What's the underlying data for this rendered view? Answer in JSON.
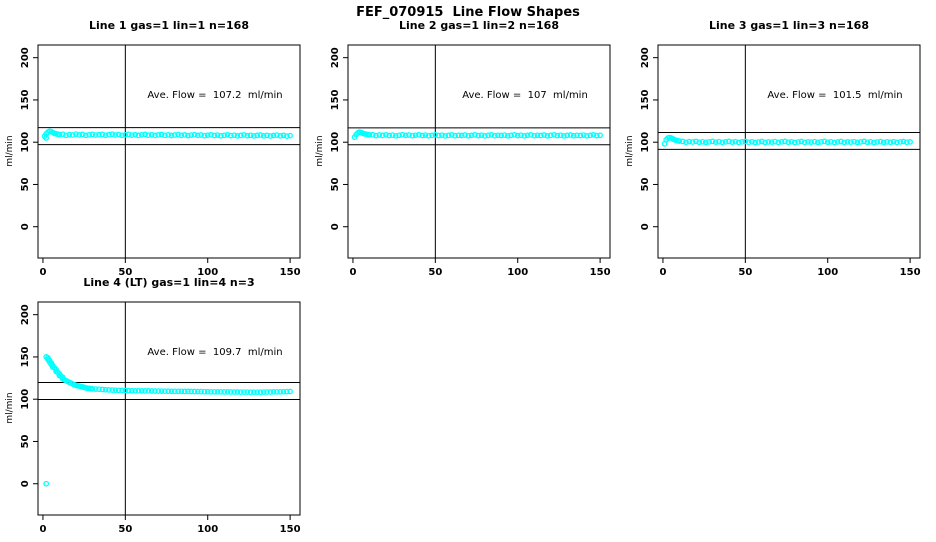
{
  "page_title": "FEF_070915  Line Flow Shapes",
  "colors": {
    "point": "#00ffff",
    "axis": "#000000",
    "background": "#ffffff"
  },
  "chart_data": [
    {
      "type": "scatter",
      "title": "Line 1 gas=1 lin=1 n=168",
      "annotation": "Ave. Flow =  107.2  ml/min",
      "ave_flow": 107.2,
      "ylabel": "ml/min",
      "xlabel": "",
      "x_range": [
        -3,
        156
      ],
      "y_range": [
        -37,
        215
      ],
      "x_ticks": [
        0,
        50,
        100,
        150
      ],
      "y_ticks": [
        0,
        50,
        100,
        150,
        200
      ],
      "vline_x": 50,
      "hlines": [
        117.2,
        97.2
      ],
      "point_color": "#00ffff",
      "points": [
        [
          1,
          107
        ],
        [
          2,
          110
        ],
        [
          2,
          105
        ],
        [
          3,
          112
        ],
        [
          4,
          113
        ],
        [
          5,
          112.5
        ],
        [
          6,
          111.5
        ],
        [
          7,
          110.5
        ],
        [
          8,
          110
        ],
        [
          9,
          109.5
        ],
        [
          10,
          109
        ],
        [
          12,
          109.5
        ],
        [
          14,
          108.2
        ],
        [
          16,
          109.0
        ],
        [
          18,
          108.5
        ],
        [
          20,
          109.6
        ],
        [
          22,
          108.6
        ],
        [
          24,
          109.2
        ],
        [
          26,
          108.1
        ],
        [
          28,
          108.8
        ],
        [
          30,
          109.3
        ],
        [
          32,
          108.4
        ],
        [
          34,
          108.9
        ],
        [
          36,
          109.4
        ],
        [
          38,
          108.3
        ],
        [
          40,
          108.9
        ],
        [
          42,
          109.5
        ],
        [
          44,
          108.5
        ],
        [
          46,
          109.0
        ],
        [
          48,
          108.2
        ],
        [
          50,
          108.8
        ],
        [
          52,
          109.3
        ],
        [
          54,
          108.4
        ],
        [
          56,
          108.9
        ],
        [
          58,
          108.1
        ],
        [
          60,
          108.7
        ],
        [
          62,
          109.2
        ],
        [
          64,
          108.3
        ],
        [
          66,
          108.8
        ],
        [
          68,
          108.0
        ],
        [
          70,
          108.6
        ],
        [
          72,
          109.1
        ],
        [
          74,
          108.2
        ],
        [
          76,
          108.7
        ],
        [
          78,
          107.9
        ],
        [
          80,
          108.5
        ],
        [
          82,
          109.0
        ],
        [
          84,
          108.1
        ],
        [
          86,
          108.6
        ],
        [
          88,
          107.8
        ],
        [
          90,
          108.4
        ],
        [
          92,
          108.9
        ],
        [
          94,
          108.0
        ],
        [
          96,
          108.5
        ],
        [
          98,
          107.7
        ],
        [
          100,
          108.3
        ],
        [
          102,
          108.8
        ],
        [
          104,
          107.9
        ],
        [
          106,
          108.4
        ],
        [
          108,
          107.6
        ],
        [
          110,
          108.2
        ],
        [
          112,
          108.7
        ],
        [
          114,
          107.8
        ],
        [
          116,
          108.3
        ],
        [
          118,
          107.5
        ],
        [
          120,
          108.1
        ],
        [
          122,
          108.6
        ],
        [
          124,
          107.7
        ],
        [
          126,
          108.2
        ],
        [
          128,
          107.4
        ],
        [
          130,
          108.0
        ],
        [
          132,
          108.5
        ],
        [
          134,
          107.6
        ],
        [
          136,
          108.1
        ],
        [
          138,
          107.3
        ],
        [
          140,
          107.9
        ],
        [
          142,
          108.4
        ],
        [
          144,
          107.5
        ],
        [
          146,
          108.0
        ],
        [
          148,
          107.2
        ],
        [
          150,
          107.8
        ]
      ]
    },
    {
      "type": "scatter",
      "title": "Line 2 gas=1 lin=2 n=168",
      "annotation": "Ave. Flow =  107  ml/min",
      "ave_flow": 107,
      "ylabel": "ml/min",
      "xlabel": "",
      "x_range": [
        -3,
        156
      ],
      "y_range": [
        -37,
        215
      ],
      "x_ticks": [
        0,
        50,
        100,
        150
      ],
      "y_ticks": [
        0,
        50,
        100,
        150,
        200
      ],
      "vline_x": 50,
      "hlines": [
        117,
        97
      ],
      "point_color": "#00ffff",
      "points": [
        [
          1,
          106
        ],
        [
          2,
          109
        ],
        [
          3,
          111
        ],
        [
          4,
          112
        ],
        [
          5,
          111.5
        ],
        [
          6,
          110.5
        ],
        [
          7,
          110
        ],
        [
          8,
          109.5
        ],
        [
          9,
          109
        ],
        [
          10,
          108.8
        ],
        [
          12,
          108.9
        ],
        [
          14,
          107.8
        ],
        [
          16,
          108.5
        ],
        [
          18,
          108.0
        ],
        [
          20,
          108.8
        ],
        [
          22,
          107.9
        ],
        [
          24,
          108.4
        ],
        [
          26,
          107.6
        ],
        [
          28,
          108.2
        ],
        [
          30,
          108.9
        ],
        [
          32,
          108.0
        ],
        [
          34,
          108.5
        ],
        [
          36,
          107.7
        ],
        [
          38,
          108.3
        ],
        [
          40,
          108.8
        ],
        [
          42,
          107.9
        ],
        [
          44,
          108.4
        ],
        [
          46,
          107.6
        ],
        [
          48,
          108.1
        ],
        [
          50,
          108.7
        ],
        [
          52,
          107.8
        ],
        [
          54,
          108.3
        ],
        [
          56,
          107.5
        ],
        [
          58,
          108.0
        ],
        [
          60,
          108.6
        ],
        [
          62,
          107.7
        ],
        [
          64,
          108.2
        ],
        [
          66,
          107.9
        ],
        [
          68,
          108.5
        ],
        [
          70,
          107.6
        ],
        [
          72,
          108.1
        ],
        [
          74,
          108.7
        ],
        [
          76,
          107.8
        ],
        [
          78,
          108.3
        ],
        [
          80,
          107.5
        ],
        [
          82,
          108.0
        ],
        [
          84,
          108.6
        ],
        [
          86,
          107.7
        ],
        [
          88,
          108.2
        ],
        [
          90,
          107.9
        ],
        [
          92,
          108.4
        ],
        [
          94,
          107.6
        ],
        [
          96,
          108.1
        ],
        [
          98,
          108.7
        ],
        [
          100,
          107.8
        ],
        [
          102,
          108.3
        ],
        [
          104,
          107.5
        ],
        [
          106,
          108.0
        ],
        [
          108,
          108.6
        ],
        [
          110,
          107.7
        ],
        [
          112,
          108.2
        ],
        [
          114,
          107.9
        ],
        [
          116,
          108.5
        ],
        [
          118,
          107.6
        ],
        [
          120,
          108.1
        ],
        [
          122,
          108.7
        ],
        [
          124,
          107.8
        ],
        [
          126,
          108.3
        ],
        [
          128,
          107.5
        ],
        [
          130,
          108.0
        ],
        [
          132,
          108.5
        ],
        [
          134,
          107.7
        ],
        [
          136,
          108.2
        ],
        [
          138,
          107.9
        ],
        [
          140,
          108.4
        ],
        [
          142,
          107.6
        ],
        [
          144,
          108.1
        ],
        [
          146,
          108.6
        ],
        [
          148,
          107.8
        ],
        [
          150,
          108.2
        ]
      ]
    },
    {
      "type": "scatter",
      "title": "Line 3 gas=1 lin=3 n=168",
      "annotation": "Ave. Flow =  101.5  ml/min",
      "ave_flow": 101.5,
      "ylabel": "ml/min",
      "xlabel": "",
      "x_range": [
        -3,
        156
      ],
      "y_range": [
        -37,
        215
      ],
      "x_ticks": [
        0,
        50,
        100,
        150
      ],
      "y_ticks": [
        0,
        50,
        100,
        150,
        200
      ],
      "vline_x": 50,
      "hlines": [
        111.5,
        91.5
      ],
      "point_color": "#00ffff",
      "points": [
        [
          1,
          98
        ],
        [
          2,
          103
        ],
        [
          3,
          105
        ],
        [
          4,
          105.5
        ],
        [
          5,
          105
        ],
        [
          6,
          104
        ],
        [
          7,
          103
        ],
        [
          8,
          102.3
        ],
        [
          9,
          101.8
        ],
        [
          10,
          101.3
        ],
        [
          12,
          101.0
        ],
        [
          14,
          100.0
        ],
        [
          16,
          100.7
        ],
        [
          18,
          100.2
        ],
        [
          20,
          100.9
        ],
        [
          22,
          100.0
        ],
        [
          24,
          100.5
        ],
        [
          26,
          99.8
        ],
        [
          28,
          100.3
        ],
        [
          30,
          101.0
        ],
        [
          32,
          100.1
        ],
        [
          34,
          100.6
        ],
        [
          36,
          99.9
        ],
        [
          38,
          100.4
        ],
        [
          40,
          101.0
        ],
        [
          42,
          100.1
        ],
        [
          44,
          100.6
        ],
        [
          46,
          99.8
        ],
        [
          48,
          100.3
        ],
        [
          50,
          100.9
        ],
        [
          52,
          100.0
        ],
        [
          54,
          100.5
        ],
        [
          56,
          99.7
        ],
        [
          58,
          100.2
        ],
        [
          60,
          100.8
        ],
        [
          62,
          99.9
        ],
        [
          64,
          100.4
        ],
        [
          66,
          100.1
        ],
        [
          68,
          100.7
        ],
        [
          70,
          99.8
        ],
        [
          72,
          100.3
        ],
        [
          74,
          100.9
        ],
        [
          76,
          100.0
        ],
        [
          78,
          100.5
        ],
        [
          80,
          99.7
        ],
        [
          82,
          100.2
        ],
        [
          84,
          100.8
        ],
        [
          86,
          99.9
        ],
        [
          88,
          100.4
        ],
        [
          90,
          100.1
        ],
        [
          92,
          100.6
        ],
        [
          94,
          99.8
        ],
        [
          96,
          100.3
        ],
        [
          98,
          100.9
        ],
        [
          100,
          100.0
        ],
        [
          102,
          100.5
        ],
        [
          104,
          99.7
        ],
        [
          106,
          100.2
        ],
        [
          108,
          100.8
        ],
        [
          110,
          99.9
        ],
        [
          112,
          100.4
        ],
        [
          114,
          100.1
        ],
        [
          116,
          100.6
        ],
        [
          118,
          99.8
        ],
        [
          120,
          100.3
        ],
        [
          122,
          100.9
        ],
        [
          124,
          100.0
        ],
        [
          126,
          100.5
        ],
        [
          128,
          99.7
        ],
        [
          130,
          100.2
        ],
        [
          132,
          100.7
        ],
        [
          134,
          99.9
        ],
        [
          136,
          100.4
        ],
        [
          138,
          100.0
        ],
        [
          140,
          100.6
        ],
        [
          142,
          99.8
        ],
        [
          144,
          100.3
        ],
        [
          146,
          100.8
        ],
        [
          148,
          100.0
        ],
        [
          150,
          100.4
        ]
      ]
    },
    {
      "type": "scatter",
      "title": "Line 4 (LT) gas=1 lin=4 n=3",
      "annotation": "Ave. Flow =  109.7  ml/min",
      "ave_flow": 109.7,
      "ylabel": "ml/min",
      "xlabel": "",
      "x_range": [
        -3,
        156
      ],
      "y_range": [
        -37,
        215
      ],
      "x_ticks": [
        0,
        50,
        100,
        150
      ],
      "y_ticks": [
        0,
        50,
        100,
        150,
        200
      ],
      "vline_x": 50,
      "hlines": [
        119.7,
        99.7
      ],
      "point_color": "#00ffff",
      "points": [
        [
          2,
          0
        ],
        [
          2,
          150
        ],
        [
          3,
          149
        ],
        [
          3,
          147
        ],
        [
          4,
          146
        ],
        [
          4,
          144
        ],
        [
          5,
          143
        ],
        [
          5,
          141
        ],
        [
          6,
          140
        ],
        [
          6,
          138
        ],
        [
          7,
          137
        ],
        [
          8,
          135
        ],
        [
          8,
          133
        ],
        [
          9,
          132
        ],
        [
          10,
          130
        ],
        [
          10,
          128
        ],
        [
          11,
          127
        ],
        [
          12,
          126
        ],
        [
          12,
          124
        ],
        [
          13,
          123
        ],
        [
          14,
          122
        ],
        [
          15,
          121
        ],
        [
          16,
          120
        ],
        [
          17,
          119
        ],
        [
          18,
          118
        ],
        [
          19,
          117
        ],
        [
          20,
          116.5
        ],
        [
          21,
          116
        ],
        [
          22,
          115.5
        ],
        [
          23,
          115
        ],
        [
          24,
          114.5
        ],
        [
          25,
          114
        ],
        [
          26,
          113.5
        ],
        [
          27,
          113
        ],
        [
          28,
          112.8
        ],
        [
          29,
          112.5
        ],
        [
          30,
          112.2
        ],
        [
          32,
          112
        ],
        [
          34,
          111.8
        ],
        [
          36,
          111.5
        ],
        [
          38,
          111.2
        ],
        [
          40,
          111
        ],
        [
          42,
          110.8
        ],
        [
          44,
          110.7
        ],
        [
          46,
          110.5
        ],
        [
          48,
          110.4
        ],
        [
          50,
          110.3
        ],
        [
          52,
          110.2
        ],
        [
          54,
          110.1
        ],
        [
          56,
          110
        ],
        [
          58,
          110
        ],
        [
          60,
          109.9
        ],
        [
          62,
          109.8
        ],
        [
          64,
          109.8
        ],
        [
          66,
          109.7
        ],
        [
          68,
          109.7
        ],
        [
          70,
          109.6
        ],
        [
          72,
          109.6
        ],
        [
          74,
          109.5
        ],
        [
          76,
          109.5
        ],
        [
          78,
          109.4
        ],
        [
          80,
          109.4
        ],
        [
          82,
          109.3
        ],
        [
          84,
          109.3
        ],
        [
          86,
          109.2
        ],
        [
          88,
          109.2
        ],
        [
          90,
          109.1
        ],
        [
          92,
          109.1
        ],
        [
          94,
          109
        ],
        [
          96,
          109
        ],
        [
          98,
          108.9
        ],
        [
          100,
          108.9
        ],
        [
          102,
          108.8
        ],
        [
          104,
          108.8
        ],
        [
          106,
          108.7
        ],
        [
          108,
          108.7
        ],
        [
          110,
          108.6
        ],
        [
          112,
          108.6
        ],
        [
          114,
          108.5
        ],
        [
          116,
          108.5
        ],
        [
          118,
          108.5
        ],
        [
          120,
          108.4
        ],
        [
          122,
          108.4
        ],
        [
          124,
          108.4
        ],
        [
          126,
          108.3
        ],
        [
          128,
          108.3
        ],
        [
          130,
          108.3
        ],
        [
          132,
          108.4
        ],
        [
          134,
          108.4
        ],
        [
          136,
          108.5
        ],
        [
          138,
          108.5
        ],
        [
          140,
          108.6
        ],
        [
          142,
          108.7
        ],
        [
          144,
          108.8
        ],
        [
          146,
          108.9
        ],
        [
          148,
          109
        ],
        [
          150,
          109.1
        ]
      ]
    }
  ]
}
